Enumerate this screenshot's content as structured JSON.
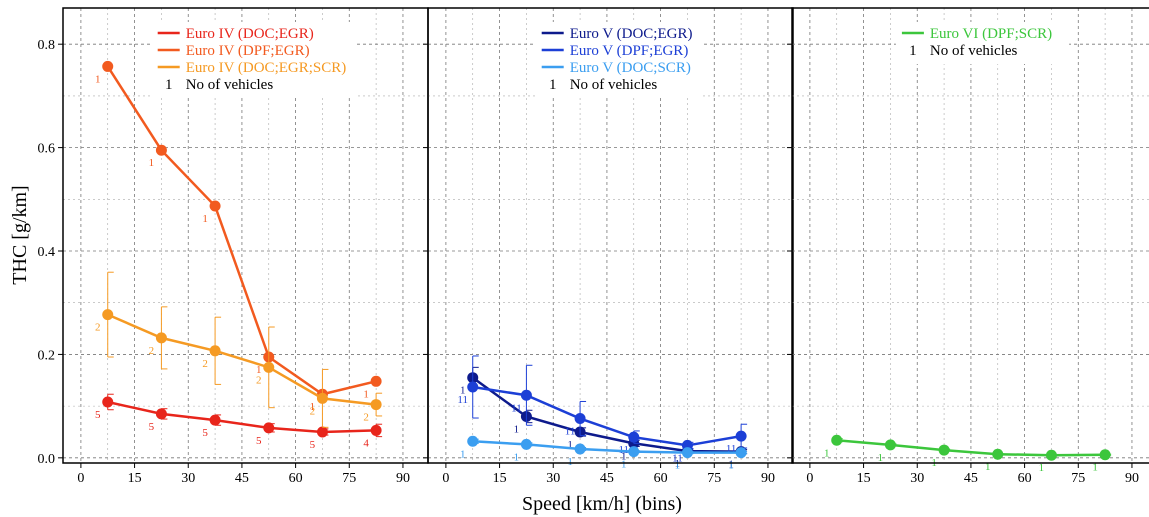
{
  "chart_data": {
    "type": "line",
    "xlabel": "Speed [km/h] (bins)",
    "ylabel": "THC [g/km]",
    "xlim": [
      -5,
      97
    ],
    "ylim": [
      -0.01,
      0.87
    ],
    "x_ticks": [
      0,
      15,
      30,
      45,
      60,
      75,
      90
    ],
    "y_ticks": [
      0.0,
      0.2,
      0.4,
      0.6,
      0.8
    ],
    "y_tick_labels": [
      "0.0",
      "0.2",
      "0.4",
      "0.6",
      "0.8"
    ],
    "grid": true,
    "panels": [
      {
        "legend_position": "top-center",
        "legend": [
          {
            "label": "Euro IV (DOC;EGR)",
            "color": "#e8251b",
            "kind": "line"
          },
          {
            "label": "Euro IV (DPF;EGR)",
            "color": "#f25a1f",
            "kind": "line"
          },
          {
            "label": "Euro IV (DOC;EGR;SCR)",
            "color": "#f59a23",
            "kind": "line"
          },
          {
            "label": "No of vehicles",
            "symbol": "1",
            "color": "#000000",
            "kind": "text"
          }
        ],
        "series": [
          {
            "name": "Euro IV (DOC;EGR)",
            "color": "#e8251b",
            "x": [
              7.5,
              22.5,
              37.5,
              52.5,
              67.5,
              82.5
            ],
            "y": [
              0.108,
              0.085,
              0.073,
              0.058,
              0.05,
              0.053
            ],
            "err": [
              0.015,
              0.01,
              0.01,
              0.008,
              0.006,
              0.012
            ],
            "counts": [
              "5",
              "5",
              "5",
              "5",
              "5",
              "4"
            ]
          },
          {
            "name": "Euro IV (DPF;EGR)",
            "color": "#f25a1f",
            "x": [
              7.5,
              22.5,
              37.5,
              52.5,
              67.5,
              82.5
            ],
            "y": [
              0.757,
              0.595,
              0.487,
              0.195,
              0.123,
              0.148
            ],
            "err": [
              0,
              0,
              0,
              0,
              0,
              0
            ],
            "counts": [
              "1",
              "1",
              "1",
              "1",
              "1",
              "1"
            ]
          },
          {
            "name": "Euro IV (DOC;EGR;SCR)",
            "color": "#f59a23",
            "x": [
              7.5,
              22.5,
              37.5,
              52.5,
              67.5,
              82.5
            ],
            "y": [
              0.277,
              0.232,
              0.207,
              0.175,
              0.115,
              0.103
            ],
            "err": [
              0.082,
              0.06,
              0.065,
              0.078,
              0.056,
              0.022
            ],
            "counts": [
              "2",
              "2",
              "2",
              "2",
              "2",
              "2"
            ]
          }
        ]
      },
      {
        "legend_position": "top-center",
        "legend": [
          {
            "label": "Euro V (DOC;EGR)",
            "color": "#0d1a8c",
            "kind": "line"
          },
          {
            "label": "Euro V (DPF;EGR)",
            "color": "#1c3fd6",
            "kind": "line"
          },
          {
            "label": "Euro V (DOC;SCR)",
            "color": "#3b9ef0",
            "kind": "line"
          },
          {
            "label": "No of vehicles",
            "symbol": "1",
            "color": "#000000",
            "kind": "text"
          }
        ],
        "series": [
          {
            "name": "Euro V (DOC;EGR)",
            "color": "#0d1a8c",
            "x": [
              7.5,
              22.5,
              37.5,
              52.5,
              67.5,
              82.5
            ],
            "y": [
              0.155,
              0.08,
              0.05,
              0.028,
              0.013,
              0.012
            ],
            "err": [
              0.02,
              0.012,
              0.008,
              0.006,
              0.004,
              0.004
            ],
            "counts": [
              "1",
              "1",
              "1",
              "1",
              "1",
              "1"
            ]
          },
          {
            "name": "Euro V (DPF;EGR)",
            "color": "#1c3fd6",
            "x": [
              7.5,
              22.5,
              37.5,
              52.5,
              67.5,
              82.5
            ],
            "y": [
              0.137,
              0.121,
              0.076,
              0.04,
              0.024,
              0.042
            ],
            "err": [
              0.06,
              0.058,
              0.033,
              0.012,
              0.006,
              0.023
            ],
            "counts": [
              "11",
              "11",
              "11",
              "11",
              "11",
              "11"
            ]
          },
          {
            "name": "Euro V (DOC;SCR)",
            "color": "#3b9ef0",
            "x": [
              7.5,
              22.5,
              37.5,
              52.5,
              67.5,
              82.5
            ],
            "y": [
              0.032,
              0.026,
              0.017,
              0.012,
              0.01,
              0.01
            ],
            "err": [
              0.004,
              0.003,
              0.003,
              0.002,
              0.002,
              0.002
            ],
            "counts": [
              "1",
              "1",
              "1",
              "1",
              "1",
              "1"
            ]
          }
        ]
      },
      {
        "legend_position": "top-center",
        "legend": [
          {
            "label": "Euro VI (DPF;SCR)",
            "color": "#3cc63c",
            "kind": "line"
          },
          {
            "label": "No of vehicles",
            "symbol": "1",
            "color": "#000000",
            "kind": "text"
          }
        ],
        "series": [
          {
            "name": "Euro VI (DPF;SCR)",
            "color": "#3cc63c",
            "x": [
              7.5,
              22.5,
              37.5,
              52.5,
              67.5,
              82.5
            ],
            "y": [
              0.034,
              0.025,
              0.015,
              0.007,
              0.005,
              0.006
            ],
            "err": [
              0.003,
              0.002,
              0.002,
              0.001,
              0.001,
              0.001
            ],
            "counts": [
              "1",
              "1",
              "1",
              "1",
              "1",
              "1"
            ]
          }
        ]
      }
    ]
  }
}
